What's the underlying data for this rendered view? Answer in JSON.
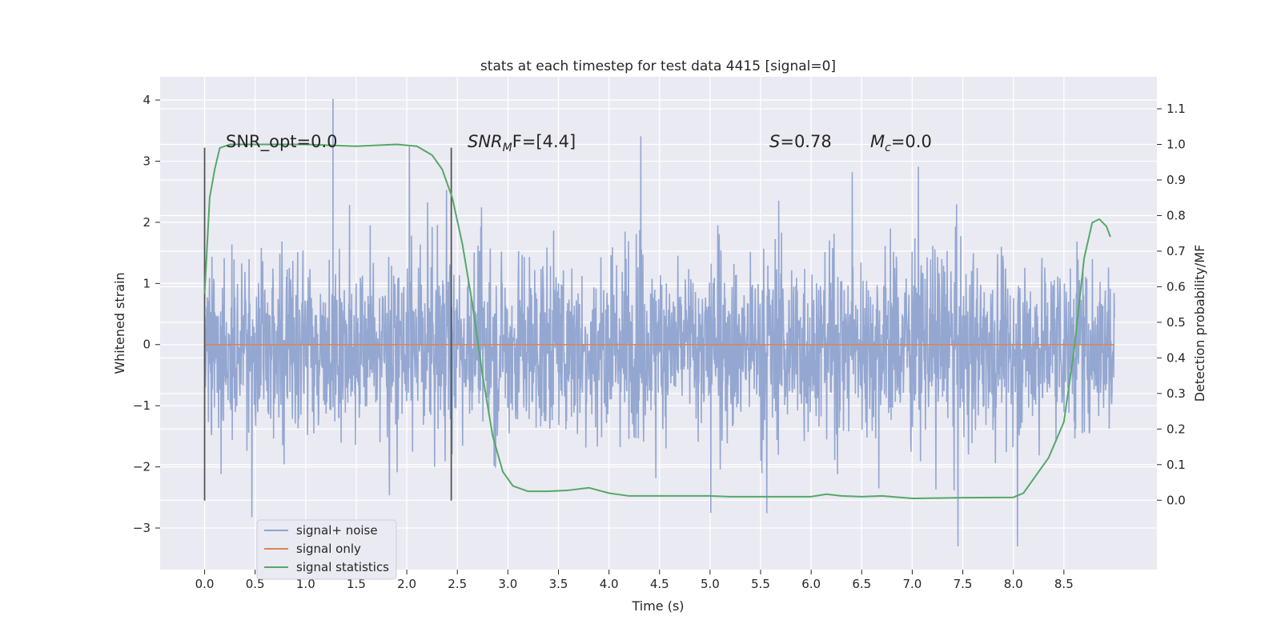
{
  "chart_data": {
    "type": "line",
    "title": "stats at each timestep for test data 4415 [signal=0]",
    "xlabel": "Time (s)",
    "ylabel_left": "Whitened strain",
    "ylabel_right": "Detection probability/MF",
    "xlim": [
      -0.44,
      9.42
    ],
    "ylim_left": [
      -3.68,
      4.38
    ],
    "ylim_right": [
      -0.195,
      1.19
    ],
    "x_ticks": [
      "0.0",
      "0.5",
      "1.0",
      "1.5",
      "2.0",
      "2.5",
      "3.0",
      "3.5",
      "4.0",
      "4.5",
      "5.0",
      "5.5",
      "6.0",
      "6.5",
      "7.0",
      "7.5",
      "8.0",
      "8.5"
    ],
    "y_ticks_left": [
      "4",
      "3",
      "2",
      "1",
      "0",
      "−1",
      "−2",
      "−3"
    ],
    "y_ticks_right": [
      "1.1",
      "1.0",
      "0.9",
      "0.8",
      "0.7",
      "0.6",
      "0.5",
      "0.4",
      "0.3",
      "0.2",
      "0.1",
      "0.0"
    ],
    "grid": true,
    "legend_position": "lower-left",
    "series": [
      {
        "name": "signal+ noise",
        "color": "#8fa3cf",
        "x_range": [
          0.0,
          9.0
        ],
        "description_stats": {
          "typical_low": -1.4,
          "typical_high": 1.5,
          "peak_max": 4.02,
          "peak_min": -3.3
        }
      },
      {
        "name": "signal only",
        "color": "#dd8452",
        "x": [
          0.0,
          9.0
        ],
        "y": [
          0.0,
          0.0
        ]
      },
      {
        "name": "signal statistics",
        "color": "#55a868",
        "axis": "right",
        "x": [
          0.0,
          0.05,
          0.1,
          0.15,
          0.25,
          0.5,
          1.0,
          1.5,
          1.9,
          2.1,
          2.25,
          2.35,
          2.45,
          2.55,
          2.65,
          2.75,
          2.85,
          2.95,
          3.05,
          3.2,
          3.4,
          3.6,
          3.8,
          4.0,
          4.2,
          4.5,
          5.0,
          5.2,
          5.5,
          5.8,
          6.0,
          6.15,
          6.3,
          6.5,
          6.7,
          7.0,
          7.5,
          8.0,
          8.1,
          8.2,
          8.35,
          8.5,
          8.6,
          8.7,
          8.78,
          8.85,
          8.92,
          8.96
        ],
        "y": [
          0.58,
          0.85,
          0.93,
          0.99,
          1.0,
          1.0,
          1.0,
          0.995,
          1.0,
          0.995,
          0.97,
          0.93,
          0.85,
          0.72,
          0.55,
          0.35,
          0.18,
          0.08,
          0.04,
          0.025,
          0.025,
          0.028,
          0.035,
          0.02,
          0.012,
          0.012,
          0.012,
          0.01,
          0.01,
          0.01,
          0.01,
          0.017,
          0.012,
          0.01,
          0.012,
          0.005,
          0.007,
          0.008,
          0.02,
          0.06,
          0.12,
          0.22,
          0.42,
          0.68,
          0.78,
          0.79,
          0.77,
          0.74
        ]
      }
    ],
    "vlines": [
      {
        "x": 0.0,
        "ymin": -2.55,
        "ymax": 3.22
      },
      {
        "x": 2.44,
        "ymin": -2.55,
        "ymax": 3.22
      }
    ],
    "annotations": [
      {
        "text": "SNR_opt=0.0",
        "x": 0.2,
        "y": 3.22
      },
      {
        "text": "SNR_MF=[4.4]",
        "x": 2.6,
        "y": 3.22
      },
      {
        "text": "S=0.78",
        "x": 5.6,
        "y": 3.22
      },
      {
        "text": "M_c=0.0",
        "x": 6.6,
        "y": 3.22
      }
    ]
  },
  "labels": {
    "title": "stats at each timestep for test data 4415 [signal=0]",
    "xlabel": "Time (s)",
    "ylabel_left": "Whitened strain",
    "ylabel_right": "Detection probability/MF",
    "legend": [
      "signal+ noise",
      "signal only",
      "signal statistics"
    ],
    "annot_snr_opt": "SNR_opt=0.0",
    "annot_snr_mf_main": "SNR",
    "annot_snr_mf_sub": "M",
    "annot_snr_mf_rest": "F=[4.4]",
    "annot_s_var": "S",
    "annot_s_rest": "=0.78",
    "annot_mc_var": "M",
    "annot_mc_sub": "c",
    "annot_mc_rest": "=0.0"
  }
}
